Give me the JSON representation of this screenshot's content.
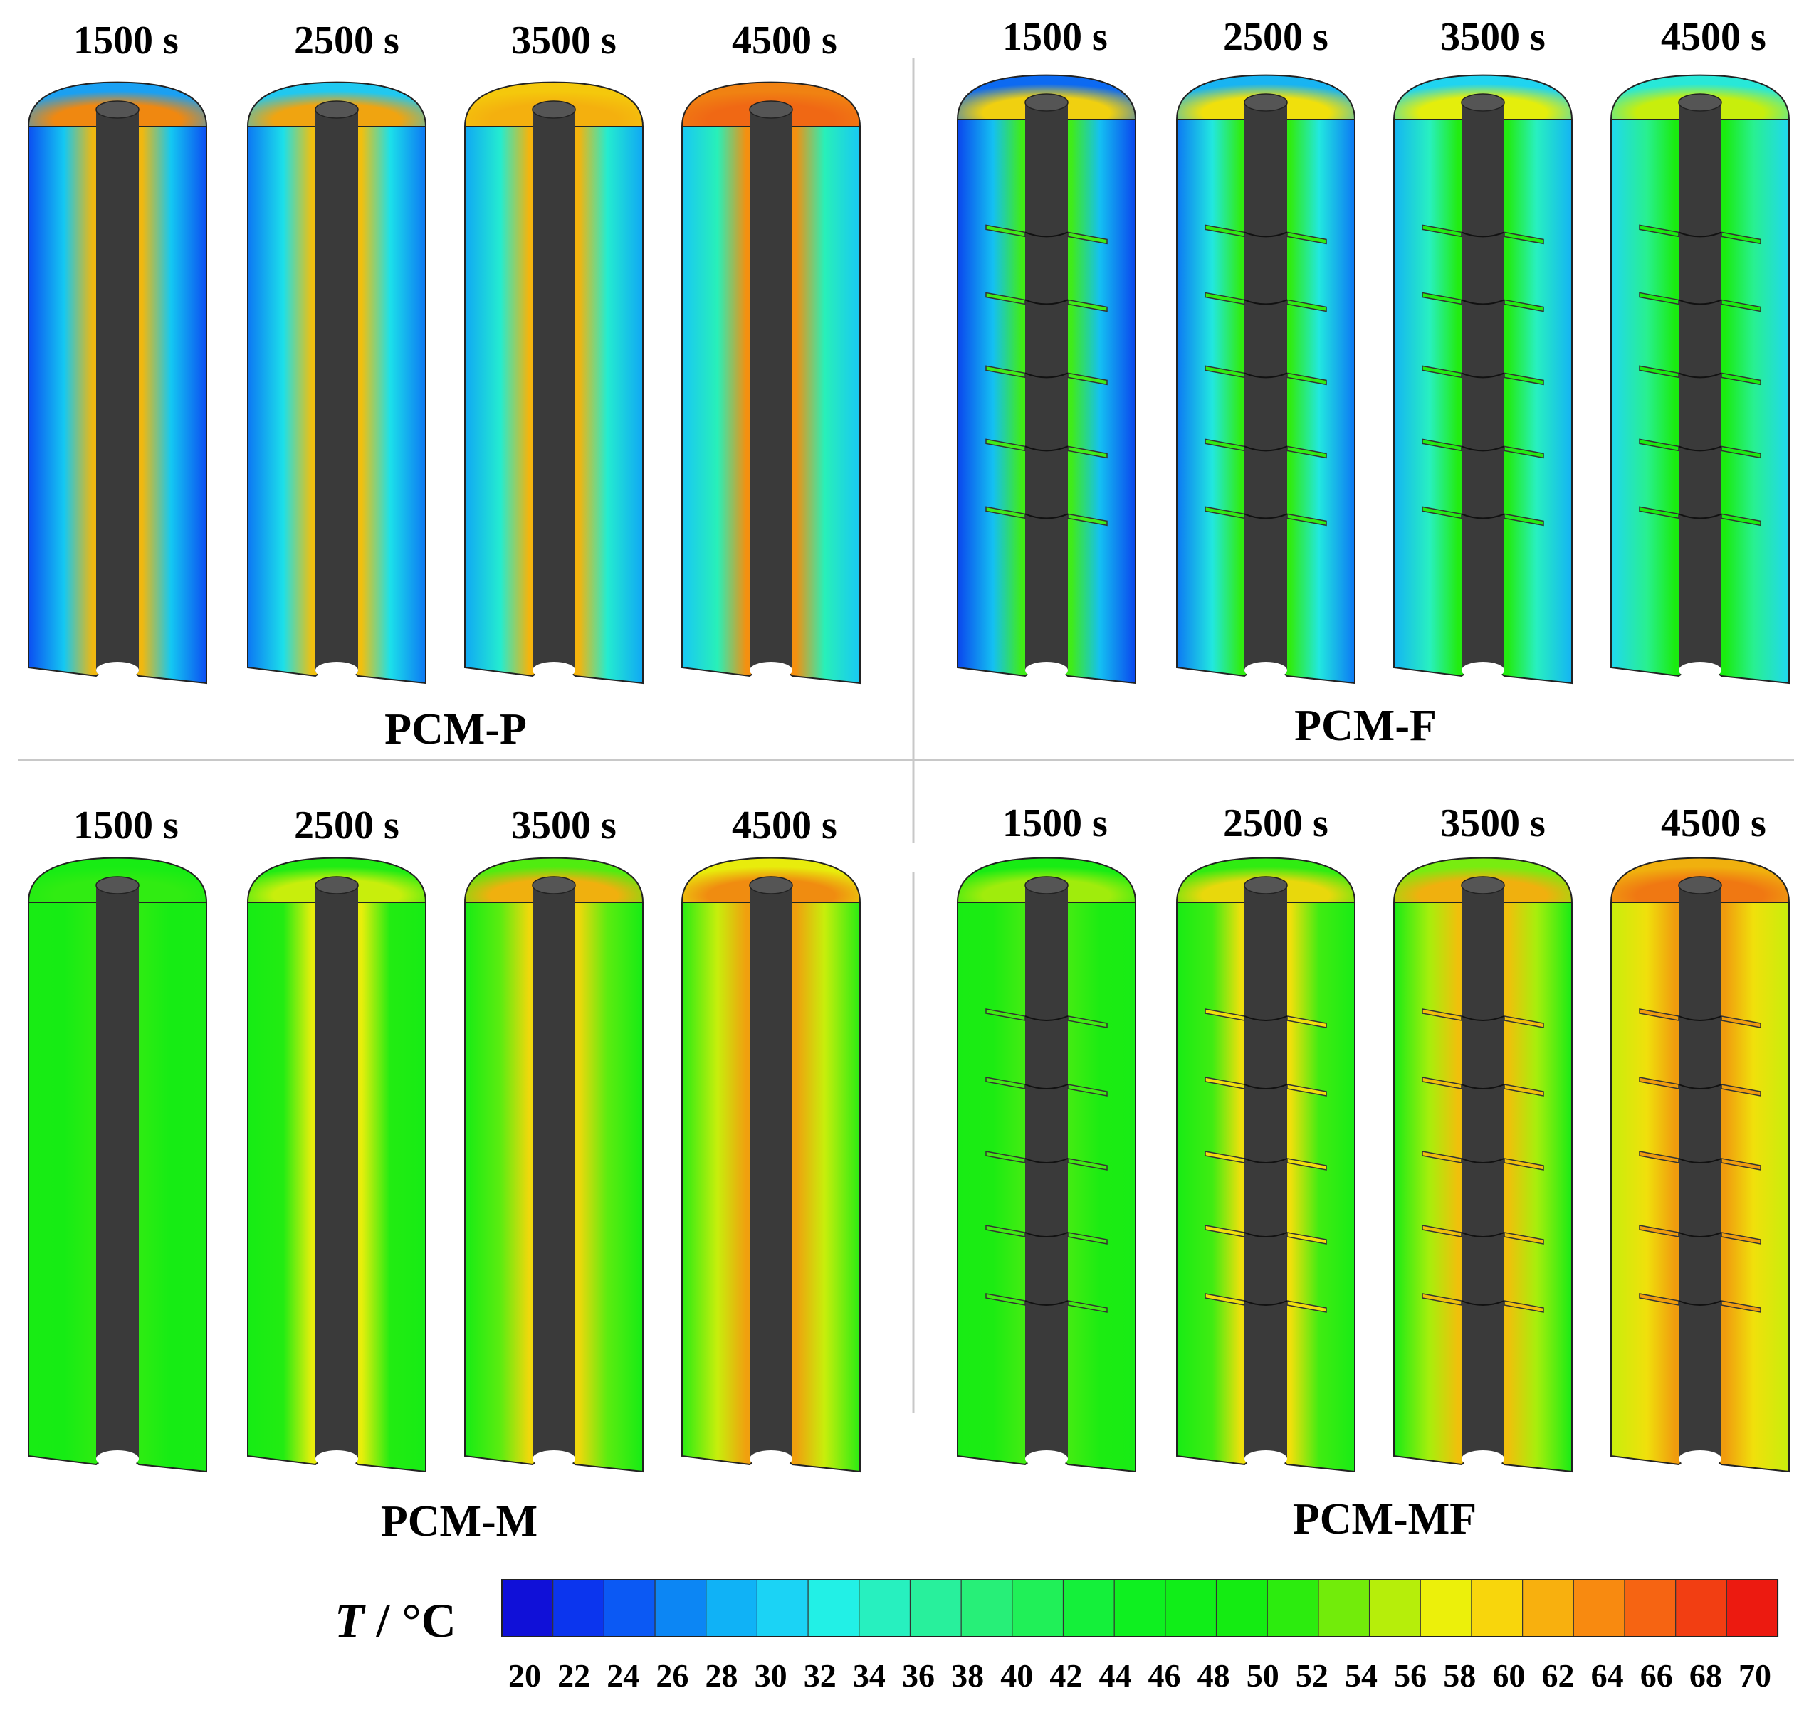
{
  "times": [
    "1500 s",
    "2500 s",
    "3500 s",
    "4500 s"
  ],
  "panels": [
    {
      "id": "PCM-P",
      "label": "PCM-P",
      "fins": false
    },
    {
      "id": "PCM-F",
      "label": "PCM-F",
      "fins": true
    },
    {
      "id": "PCM-M",
      "label": "PCM-M",
      "fins": false
    },
    {
      "id": "PCM-MF",
      "label": "PCM-MF",
      "fins": true
    }
  ],
  "colorbar": {
    "title_italic": "T",
    "title_rest": " / °C",
    "ticks": [
      "20",
      "22",
      "24",
      "26",
      "28",
      "30",
      "32",
      "34",
      "36",
      "38",
      "40",
      "42",
      "44",
      "46",
      "48",
      "50",
      "52",
      "54",
      "56",
      "58",
      "60",
      "62",
      "64",
      "66",
      "68",
      "70"
    ],
    "colors": [
      "#1010d8",
      "#0b35ee",
      "#0b59f4",
      "#0c86f4",
      "#10b2f6",
      "#1bd3f5",
      "#22f0e6",
      "#27f0bf",
      "#28f09c",
      "#27ef78",
      "#20f058",
      "#14f03a",
      "#0ef020",
      "#10ee18",
      "#14ec12",
      "#2cec0e",
      "#72ec0a",
      "#b6ee0a",
      "#ecf00a",
      "#f8d60c",
      "#f8b00e",
      "#f88a10",
      "#f66412",
      "#f23e12",
      "#ec1a10"
    ]
  },
  "colors": {
    "rod": "#3a3a3a",
    "outline": "#222222",
    "divider": "#c8c8c8"
  }
}
